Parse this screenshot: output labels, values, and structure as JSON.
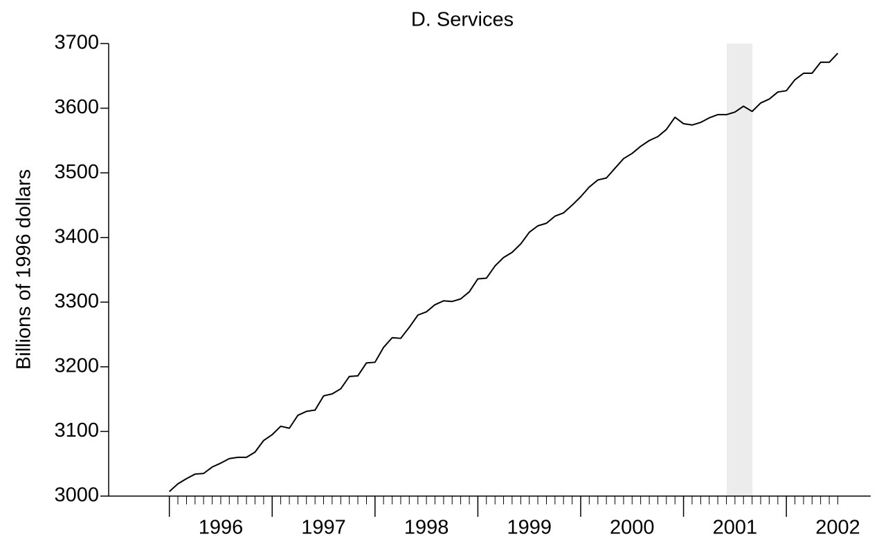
{
  "chart_data": {
    "type": "line",
    "title": "D.  Services",
    "ylabel": "Billions of 1996 dollars",
    "x": [
      1996,
      1996.083,
      1996.167,
      1996.25,
      1996.333,
      1996.417,
      1996.5,
      1996.583,
      1996.667,
      1996.75,
      1996.833,
      1996.917,
      1997,
      1997.083,
      1997.167,
      1997.25,
      1997.333,
      1997.417,
      1997.5,
      1997.583,
      1997.667,
      1997.75,
      1997.833,
      1997.917,
      1998,
      1998.083,
      1998.167,
      1998.25,
      1998.333,
      1998.417,
      1998.5,
      1998.583,
      1998.667,
      1998.75,
      1998.833,
      1998.917,
      1999,
      1999.083,
      1999.167,
      1999.25,
      1999.333,
      1999.417,
      1999.5,
      1999.583,
      1999.667,
      1999.75,
      1999.833,
      1999.917,
      2000,
      2000.083,
      2000.167,
      2000.25,
      2000.333,
      2000.417,
      2000.5,
      2000.583,
      2000.667,
      2000.75,
      2000.833,
      2000.917,
      2001,
      2001.083,
      2001.167,
      2001.25,
      2001.333,
      2001.417,
      2001.5,
      2001.583,
      2001.667,
      2001.75,
      2001.833,
      2001.917,
      2002,
      2002.083,
      2002.167,
      2002.25,
      2002.333,
      2002.417,
      2002.5
    ],
    "series": [
      {
        "color": "#000000",
        "values": [
          3007,
          3019,
          3027,
          3034,
          3035,
          3045,
          3051,
          3058,
          3060,
          3060,
          3068,
          3086,
          3095,
          3108,
          3105,
          3125,
          3131,
          3133,
          3155,
          3158,
          3166,
          3185,
          3186,
          3206,
          3207,
          3230,
          3245,
          3244,
          3261,
          3280,
          3285,
          3296,
          3302,
          3301,
          3305,
          3316,
          3336,
          3337,
          3356,
          3369,
          3377,
          3390,
          3408,
          3418,
          3422,
          3433,
          3438,
          3450,
          3463,
          3478,
          3489,
          3492,
          3507,
          3522,
          3530,
          3541,
          3550,
          3556,
          3567,
          3586,
          3576,
          3574,
          3578,
          3585,
          3590,
          3590,
          3594,
          3603,
          3595,
          3608,
          3614,
          3625,
          3627,
          3644,
          3654,
          3654,
          3671,
          3671,
          3685
        ]
      }
    ],
    "xlim": [
      1995.41,
      2002.82
    ],
    "ylim": [
      3000,
      3700
    ],
    "yticks": [
      3000,
      3100,
      3200,
      3300,
      3400,
      3500,
      3600,
      3700
    ],
    "xticks": [
      {
        "value": 1996.5,
        "label": "1996"
      },
      {
        "value": 1997.5,
        "label": "1997"
      },
      {
        "value": 1998.5,
        "label": "1998"
      },
      {
        "value": 1999.5,
        "label": "1999"
      },
      {
        "value": 2000.5,
        "label": "2000"
      },
      {
        "value": 2001.5,
        "label": "2001"
      },
      {
        "value": 2002.5,
        "label": "2002"
      }
    ],
    "xmajor_ticks": [
      1996,
      1997,
      1998,
      1999,
      2000,
      2001,
      2002
    ],
    "shaded_regions": [
      [
        2001.42,
        2001.67
      ]
    ],
    "shade_color": "#ececec",
    "grid": false
  }
}
